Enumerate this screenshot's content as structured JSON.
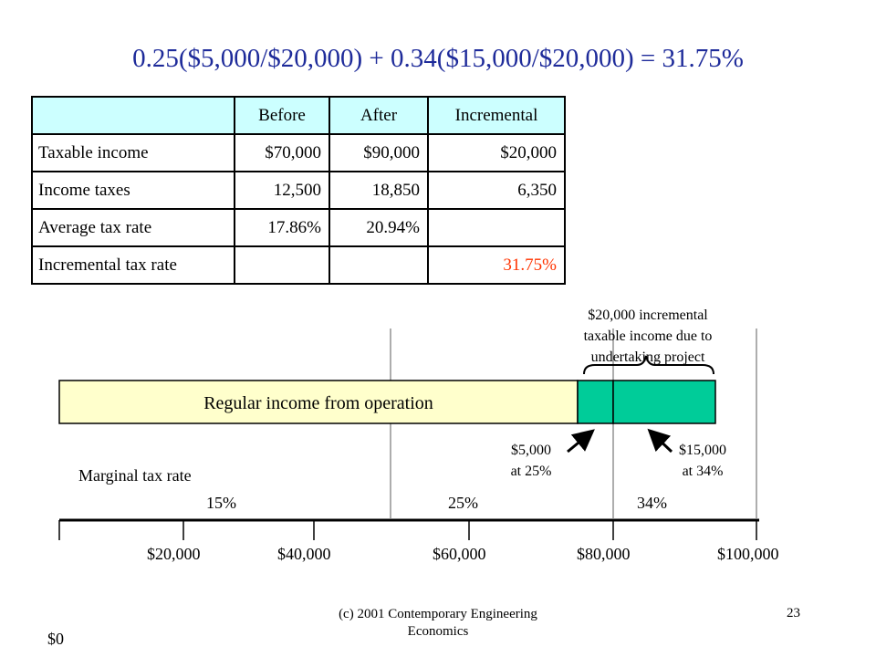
{
  "formula": "0.25($5,000/$20,000) + 0.34($15,000/$20,000) = 31.75%",
  "table": {
    "headers": [
      "",
      "Before",
      "After",
      "Incremental"
    ],
    "rows": [
      {
        "label": "Taxable income",
        "before": "$70,000",
        "after": "$90,000",
        "incremental": "$20,000"
      },
      {
        "label": "Income taxes",
        "before": "12,500",
        "after": "18,850",
        "incremental": "6,350"
      },
      {
        "label": "Average tax rate",
        "before": "17.86%",
        "after": "20.94%",
        "incremental": ""
      },
      {
        "label": "Incremental tax rate",
        "before": "",
        "after": "",
        "incremental": "31.75%"
      }
    ],
    "header_bg": "#ccffff",
    "highlight_color": "#ff3300"
  },
  "diagram": {
    "brace_label": "$20,000 incremental taxable income due to undertaking project",
    "brace_label_lines": [
      "$20,000 incremental",
      "taxable income due to",
      "undertaking project"
    ],
    "bar_label": "Regular income from operation",
    "bar_color": "#ffffcc",
    "increment_color": "#00cc99",
    "note_left": [
      "$5,000",
      "at 25%"
    ],
    "note_right": [
      "$15,000",
      "at 34%"
    ],
    "marginal_label": "Marginal tax rate",
    "rates": [
      "15%",
      "25%",
      "34%"
    ],
    "axis_labels": [
      "$0",
      "$20,000",
      "$40,000",
      "$60,000",
      "$80,000",
      "$100,000"
    ]
  },
  "footer": {
    "credit_lines": [
      "(c) 2001 Contemporary Engineering",
      "Economics"
    ],
    "page_number": "23"
  }
}
